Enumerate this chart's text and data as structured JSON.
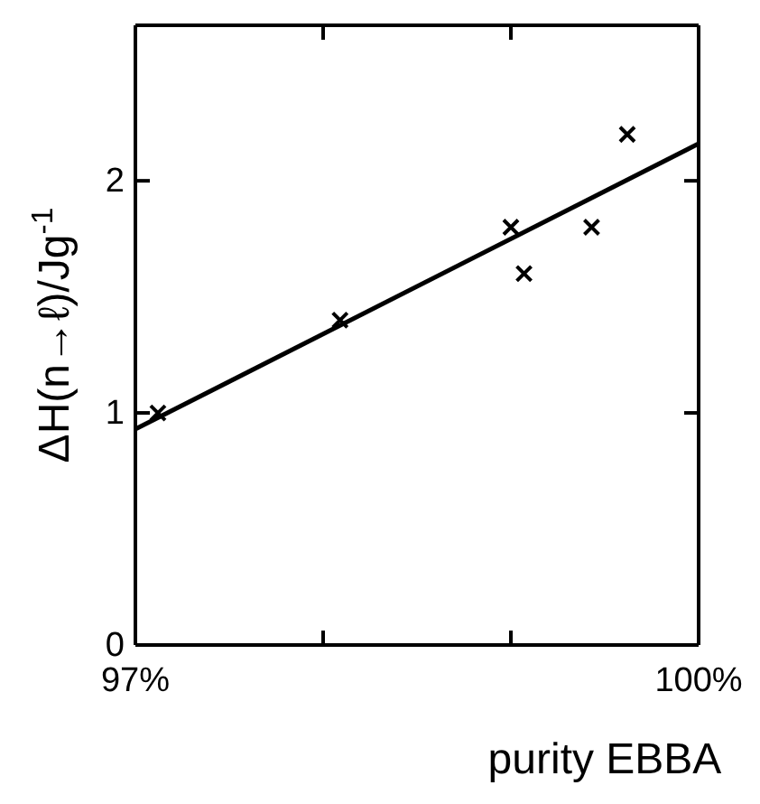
{
  "chart_data": {
    "type": "scatter",
    "xlabel": "purity EBBA",
    "ylabel": "ΔH(n→ℓ)/Jg$^{-1}$",
    "xlim": [
      97,
      100
    ],
    "xticks": [
      {
        "value": 97,
        "label": "97%"
      },
      {
        "value": 98,
        "label": null
      },
      {
        "value": 99,
        "label": null
      },
      {
        "value": 100,
        "label": "100%"
      }
    ],
    "ylim": [
      0,
      2.67
    ],
    "yticks": [
      0,
      1,
      2
    ],
    "grid": false,
    "series": [
      {
        "color": "#000000",
        "marker": "cross",
        "x": [
          97.12,
          98.09,
          99.0,
          99.07,
          99.43,
          99.62
        ],
        "values": [
          1.0,
          1.4,
          1.8,
          1.6,
          1.8,
          2.2
        ]
      },
      {
        "type": "line",
        "color": "#000000",
        "line_style": "solid",
        "marker": "none",
        "x": [
          97,
          100
        ],
        "values": [
          0.93,
          2.16
        ]
      }
    ]
  }
}
